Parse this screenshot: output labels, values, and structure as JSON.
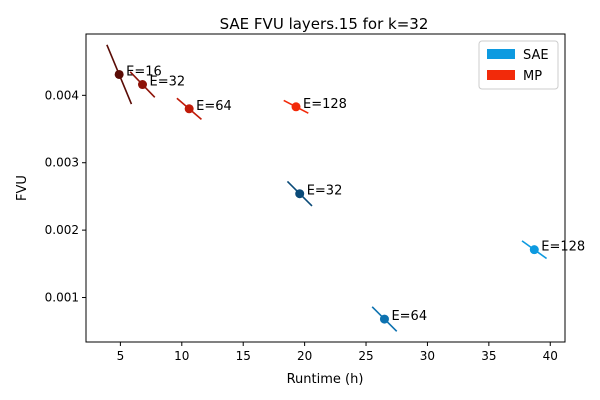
{
  "chart_data": {
    "type": "scatter",
    "title": "SAE FVU layers.15 for k=32",
    "xlabel": "Runtime (h)",
    "ylabel": "FVU",
    "xlim": [
      2.2,
      41.2
    ],
    "ylim": [
      0.00034,
      0.00491
    ],
    "xticks": [
      5,
      10,
      15,
      20,
      25,
      30,
      35,
      40
    ],
    "xtick_labels": [
      "5",
      "10",
      "15",
      "20",
      "25",
      "30",
      "35",
      "40"
    ],
    "yticks": [
      0.001,
      0.002,
      0.003,
      0.004
    ],
    "ytick_labels": [
      "0.001",
      "0.002",
      "0.003",
      "0.004"
    ],
    "grid": false,
    "legend": {
      "placement": "top-right",
      "entries": [
        {
          "name": "SAE",
          "color": "#0d9ae0"
        },
        {
          "name": "MP",
          "color": "#f22a0a"
        }
      ]
    },
    "series": [
      {
        "name": "SAE",
        "points": [
          {
            "x": 19.6,
            "y": 0.00254,
            "label": "E=32",
            "color": "#0a4a78",
            "slope": -0.000182
          },
          {
            "x": 26.5,
            "y": 0.00068,
            "label": "E=64",
            "color": "#0d72b0",
            "slope": -0.000182
          },
          {
            "x": 38.7,
            "y": 0.00171,
            "label": "E=128",
            "color": "#0d9ae0",
            "slope": -0.000131
          }
        ]
      },
      {
        "name": "MP",
        "points": [
          {
            "x": 4.9,
            "y": 0.00431,
            "label": "E=16",
            "color": "#5a0c06",
            "slope": -0.00044
          },
          {
            "x": 6.8,
            "y": 0.00416,
            "label": "E=32",
            "color": "#8e1308",
            "slope": -0.000189
          },
          {
            "x": 10.6,
            "y": 0.0038,
            "label": "E=64",
            "color": "#c01a08",
            "slope": -0.000157
          },
          {
            "x": 19.3,
            "y": 0.00383,
            "label": "E=128",
            "color": "#f22a0a",
            "slope": -9.45e-05
          }
        ]
      }
    ]
  }
}
